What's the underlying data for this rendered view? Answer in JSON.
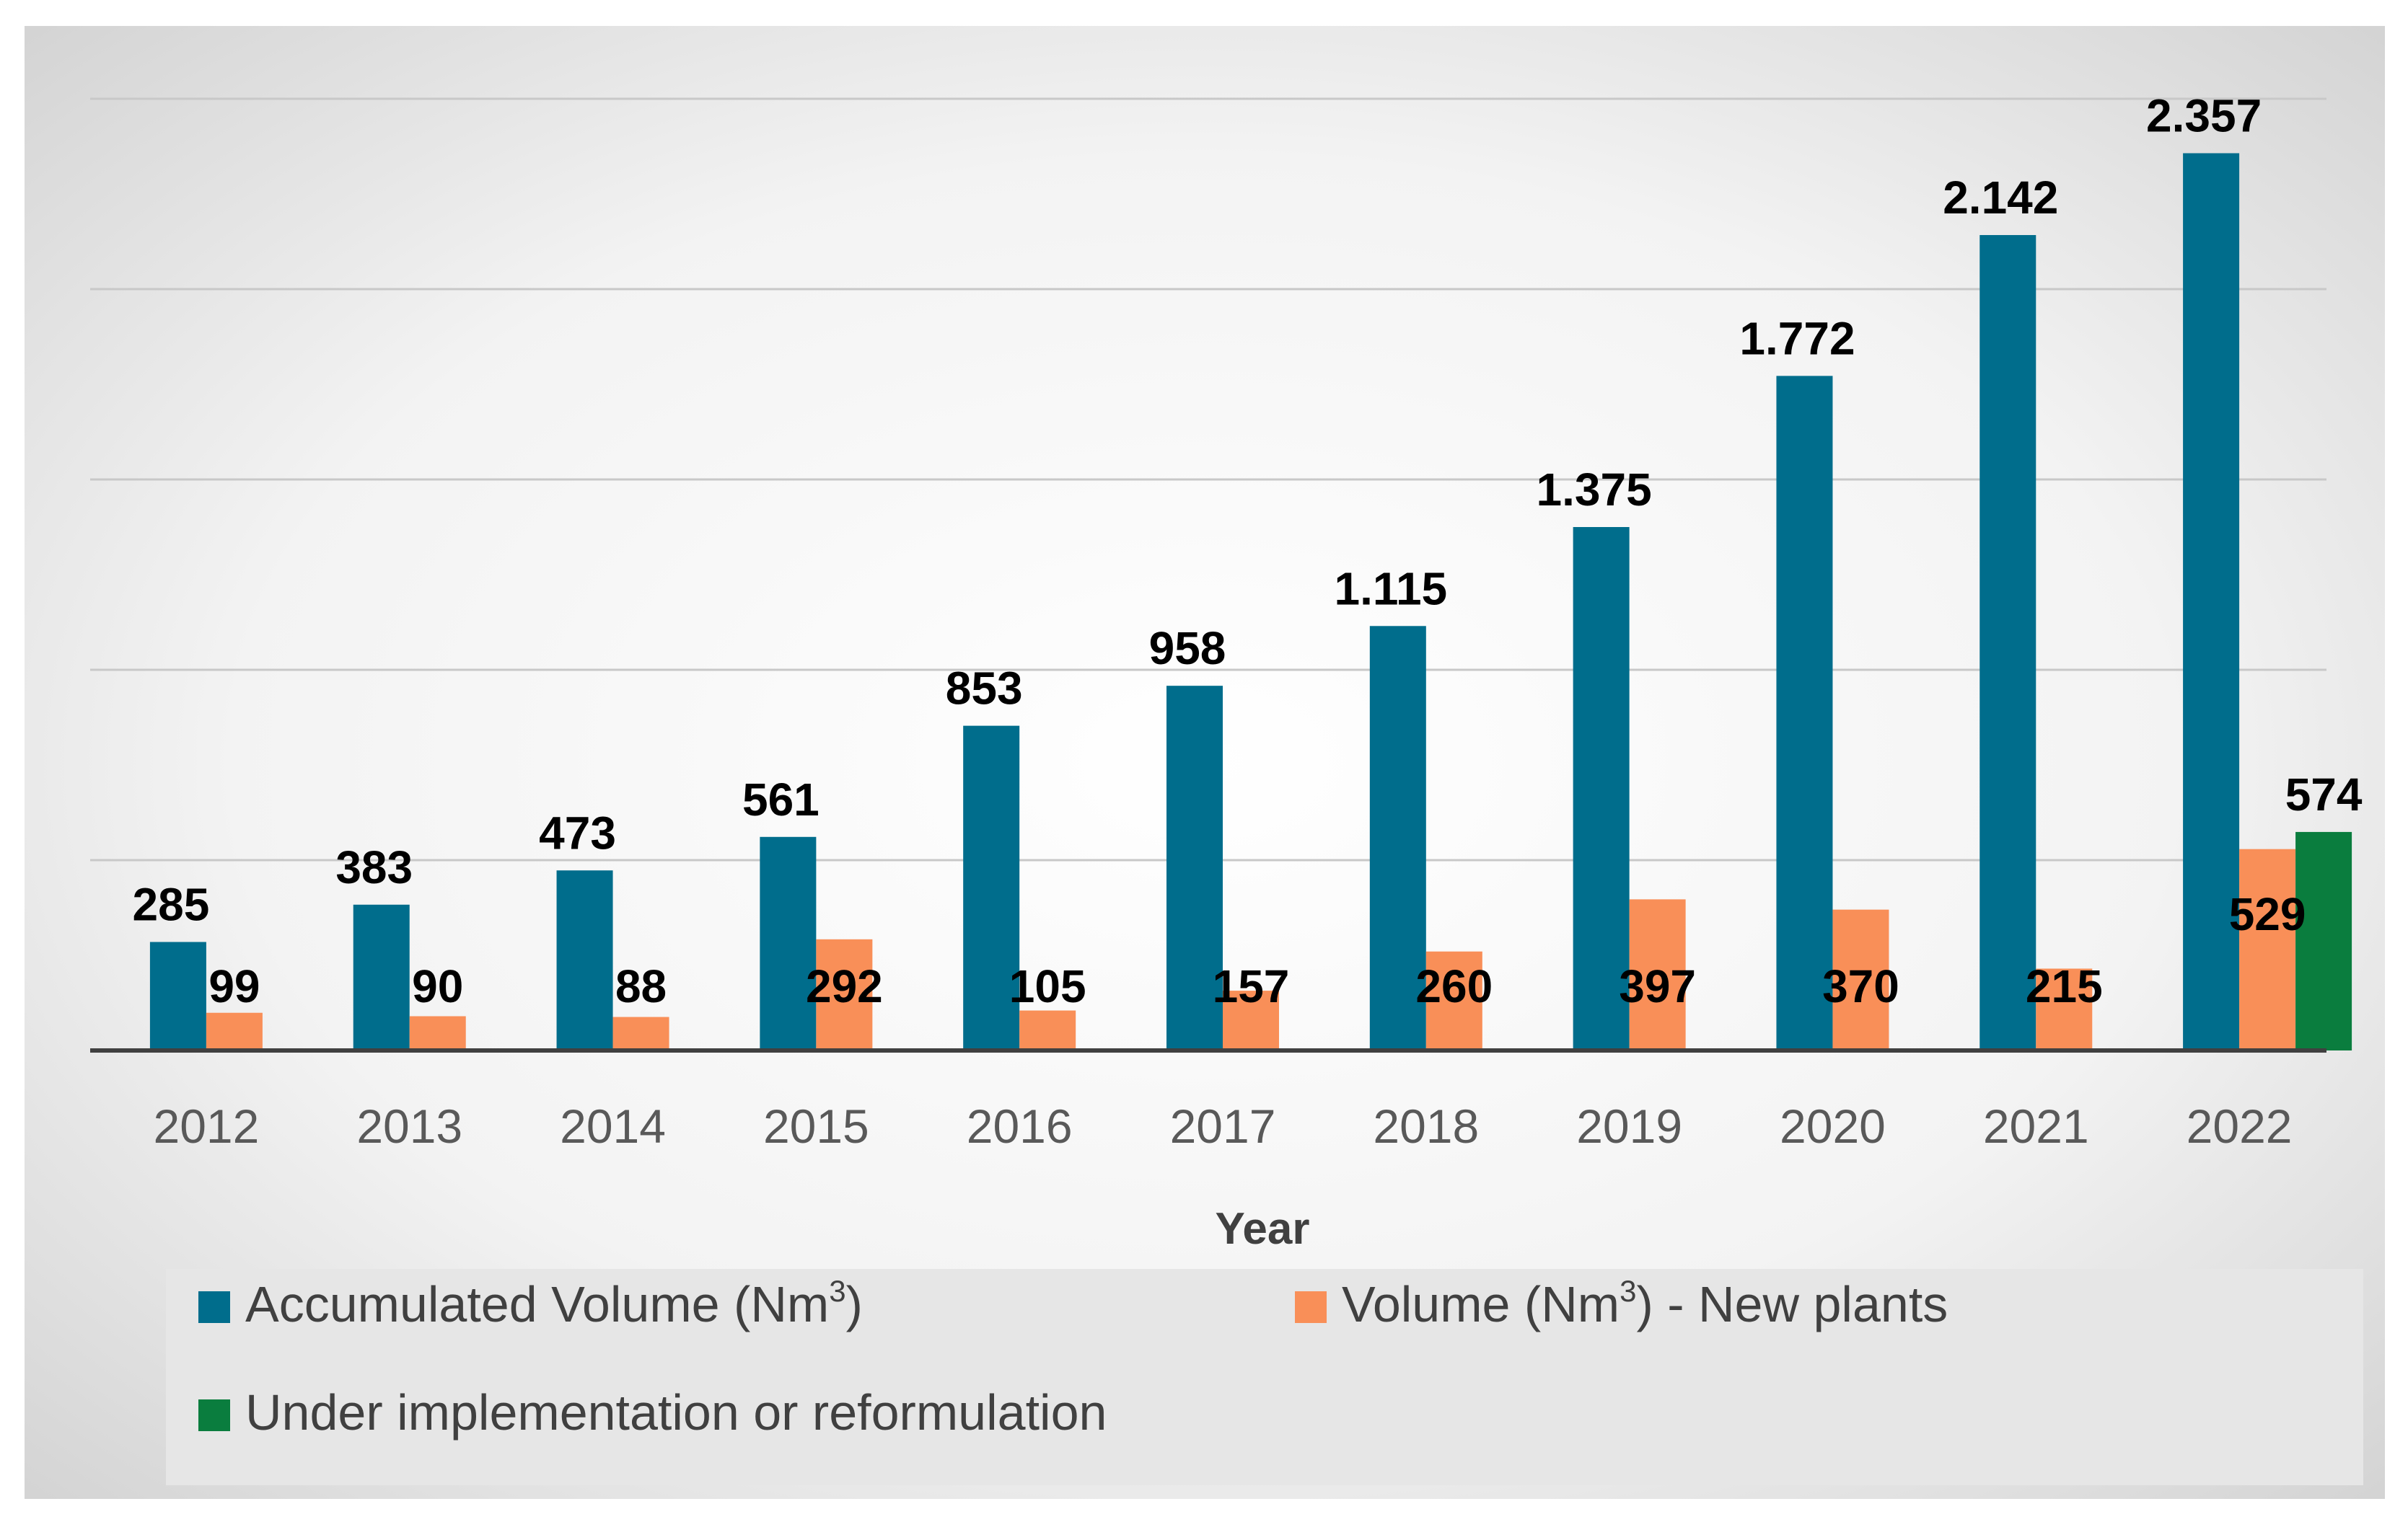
{
  "chart_data": {
    "type": "bar",
    "title": "",
    "xlabel": "Year",
    "ylabel": "",
    "ylim": [
      0,
      2500
    ],
    "grid": true,
    "legend_position": "bottom",
    "categories": [
      "2012",
      "2013",
      "2014",
      "2015",
      "2016",
      "2017",
      "2018",
      "2019",
      "2020",
      "2021",
      "2022"
    ],
    "series": [
      {
        "name": "Accumulated Volume (Nm3)",
        "legend_main": "Accumulated Volume (Nm",
        "legend_sup": "3",
        "legend_tail": ")",
        "color": "#006D8C",
        "values": [
          285,
          383,
          473,
          561,
          853,
          958,
          1115,
          1375,
          1772,
          2142,
          2357
        ],
        "labels": [
          "285",
          "383",
          "473",
          "561",
          "853",
          "958",
          "1.115",
          "1.375",
          "1.772",
          "2.142",
          "2.357"
        ]
      },
      {
        "name": "Volume (Nm3) - New plants",
        "legend_main": "Volume (Nm",
        "legend_sup": "3",
        "legend_tail": ") - New plants",
        "color": "#F98F58",
        "values": [
          99,
          90,
          88,
          292,
          105,
          157,
          260,
          397,
          370,
          215,
          529
        ],
        "labels": [
          "99",
          "90",
          "88",
          "292",
          "105",
          "157",
          "260",
          "397",
          "370",
          "215",
          "529"
        ]
      },
      {
        "name": "Under implementation or reformulation",
        "legend_main": "Under implementation or reformulation",
        "legend_sup": "",
        "legend_tail": "",
        "color": "#0A7D3E",
        "values": [
          null,
          null,
          null,
          null,
          null,
          null,
          null,
          null,
          null,
          null,
          574
        ],
        "labels": [
          "",
          "",
          "",
          "",
          "",
          "",
          "",
          "",
          "",
          "",
          "574"
        ]
      }
    ]
  }
}
